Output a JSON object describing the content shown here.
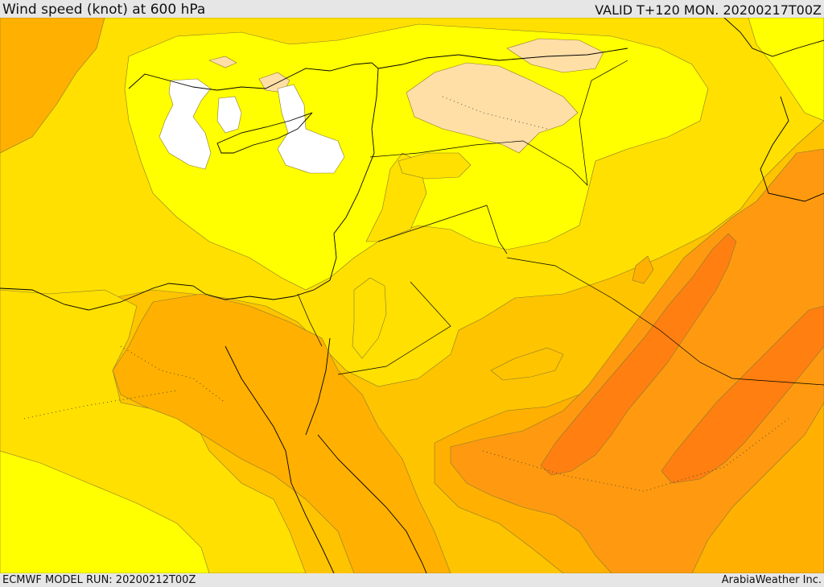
{
  "header": {
    "title": "Wind speed (knot) at 600 hPa",
    "valid": "VALID T+120 MON. 20200217T00Z"
  },
  "footer": {
    "model_run": "ECMWF MODEL RUN: 20200212T00Z",
    "credit": "ArabiaWeather Inc."
  },
  "palette": {
    "white": "#ffffff",
    "peach": "#ffdfa6",
    "yellow": "#ffff00",
    "yellow_orange": "#ffe000",
    "gold": "#ffc400",
    "amber": "#ffb000",
    "orange": "#ff9a10",
    "dark_orange": "#ff7f10",
    "coast": "#000000"
  }
}
